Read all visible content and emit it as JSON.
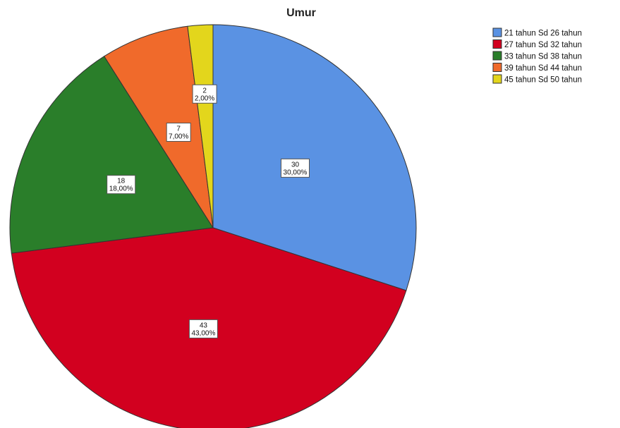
{
  "chart_data": {
    "type": "pie",
    "title": "Umur",
    "start_angle_deg": 0,
    "direction": "clockwise",
    "legend_position": "top-right",
    "slices": [
      {
        "label": "21 tahun Sd 26 tahun",
        "value": 30,
        "percent_label": "30,00%",
        "color": "#5a92e3"
      },
      {
        "label": "27 tahun Sd 32 tahun",
        "value": 43,
        "percent_label": "43,00%",
        "color": "#d2001f"
      },
      {
        "label": "33 tahun Sd 38 tahun",
        "value": 18,
        "percent_label": "18,00%",
        "color": "#2a7e2a"
      },
      {
        "label": "39 tahun Sd 44 tahun",
        "value": 7,
        "percent_label": "7,00%",
        "color": "#f06a2b"
      },
      {
        "label": "45 tahun Sd 50 tahun",
        "value": 2,
        "percent_label": "2,00%",
        "color": "#e3d61c"
      }
    ]
  }
}
